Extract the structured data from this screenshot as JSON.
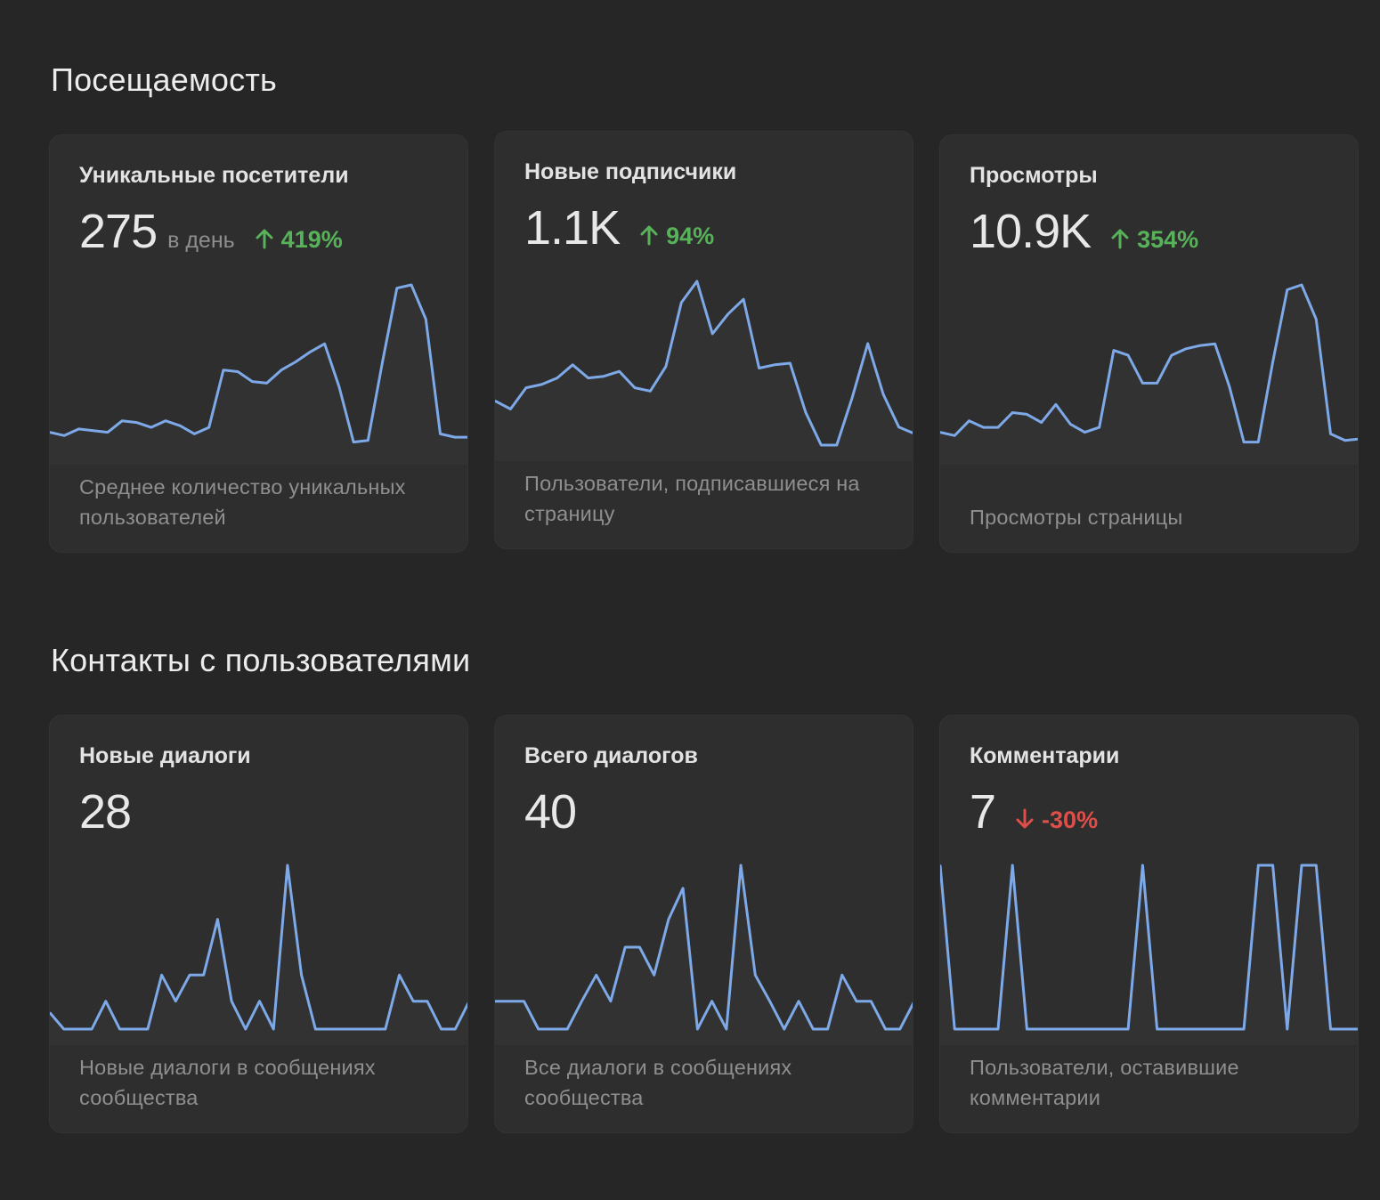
{
  "colors": {
    "background": "#262626",
    "card": "#2e2e2e",
    "line": "#7ea9e8",
    "up": "#58b25a",
    "down": "#df4e49"
  },
  "sections": [
    {
      "title": "Посещаемость",
      "cards": [
        {
          "title": "Уникальные посетители",
          "value": "275",
          "unit": "в день",
          "change": "419%",
          "direction": "up",
          "description": "Среднее количество уникальных пользователей",
          "chart_data": {
            "type": "line",
            "ylim": [
              0,
              100
            ],
            "values": [
              10,
              8,
              12,
              11,
              10,
              17,
              16,
              13,
              17,
              14,
              9,
              13,
              48,
              47,
              41,
              40,
              48,
              53,
              59,
              64,
              38,
              4,
              5,
              53,
              98,
              100,
              79,
              9,
              7,
              7
            ]
          }
        },
        {
          "title": "Новые подписчики",
          "value": "1.1K",
          "unit": "",
          "change": "94%",
          "direction": "up",
          "description": "Пользователи, подписавшиеся на страницу",
          "chart_data": {
            "type": "line",
            "ylim": [
              0,
              100
            ],
            "values": [
              27,
              22,
              35,
              37,
              41,
              49,
              41,
              42,
              45,
              35,
              33,
              48,
              87,
              100,
              68,
              80,
              89,
              47,
              49,
              50,
              20,
              0,
              0,
              29,
              62,
              31,
              11,
              7
            ]
          }
        },
        {
          "title": "Просмотры",
          "value": "10.9K",
          "unit": "",
          "change": "354%",
          "direction": "up",
          "description": "Просмотры страницы",
          "chart_data": {
            "type": "line",
            "ylim": [
              0,
              100
            ],
            "values": [
              10,
              8,
              17,
              13,
              13,
              22,
              21,
              16,
              27,
              15,
              10,
              13,
              60,
              57,
              40,
              40,
              57,
              61,
              63,
              64,
              38,
              4,
              4,
              53,
              97,
              100,
              79,
              9,
              5,
              6
            ]
          }
        }
      ]
    },
    {
      "title": "Контакты с пользователями",
      "cards": [
        {
          "title": "Новые диалоги",
          "value": "28",
          "unit": "",
          "change": "",
          "direction": "",
          "description": "Новые диалоги в сообщениях сообщества",
          "chart_data": {
            "type": "line",
            "ylim": [
              0,
              100
            ],
            "values": [
              10,
              0,
              0,
              0,
              17,
              0,
              0,
              0,
              33,
              17,
              33,
              33,
              67,
              17,
              0,
              17,
              0,
              100,
              33,
              0,
              0,
              0,
              0,
              0,
              0,
              33,
              17,
              17,
              0,
              0,
              17
            ]
          }
        },
        {
          "title": "Всего диалогов",
          "value": "40",
          "unit": "",
          "change": "",
          "direction": "",
          "description": "Все диалоги в сообщениях сообщества",
          "chart_data": {
            "type": "line",
            "ylim": [
              0,
              100
            ],
            "values": [
              17,
              17,
              17,
              0,
              0,
              0,
              17,
              33,
              17,
              50,
              50,
              33,
              67,
              86,
              0,
              17,
              0,
              100,
              33,
              17,
              0,
              17,
              0,
              0,
              33,
              17,
              17,
              0,
              0,
              17
            ]
          }
        },
        {
          "title": "Комментарии",
          "value": "7",
          "unit": "",
          "change": "-30%",
          "direction": "down",
          "description": "Пользователи, оставившие комментарии",
          "chart_data": {
            "type": "line",
            "ylim": [
              0,
              100
            ],
            "values": [
              100,
              0,
              0,
              0,
              0,
              100,
              0,
              0,
              0,
              0,
              0,
              0,
              0,
              0,
              100,
              0,
              0,
              0,
              0,
              0,
              0,
              0,
              100,
              100,
              0,
              100,
              100,
              0,
              0,
              0
            ]
          }
        }
      ]
    }
  ]
}
